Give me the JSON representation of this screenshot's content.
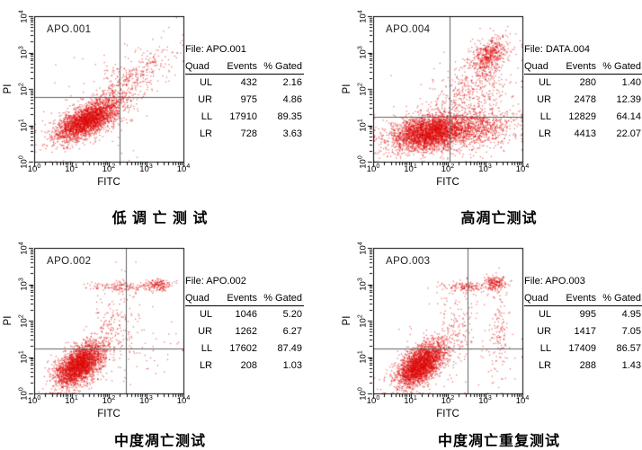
{
  "colors": {
    "dot": "#dc0a0a",
    "axis": "#000000",
    "gate_line": "#606060",
    "text": "#000000",
    "background": "#ffffff"
  },
  "chart_data": [
    {
      "type": "scatter",
      "plot_label": "APO.001",
      "title": "低 调 亡 测 试",
      "file_label": "File: APO.001",
      "xlabel": "FITC",
      "ylabel": "PI",
      "x_scale": "log10",
      "y_scale": "log10",
      "xlim_exp": [
        0,
        4
      ],
      "ylim_exp": [
        0,
        4
      ],
      "x_ticks_exp": [
        0,
        1,
        2,
        3,
        4
      ],
      "y_ticks_exp": [
        0,
        1,
        2,
        3,
        4
      ],
      "quadrant_gate_log10": {
        "x": 2.29,
        "y": 1.78
      },
      "table": {
        "headers": [
          "Quad",
          "Events",
          "% Gated"
        ],
        "rows": [
          [
            "UL",
            "432",
            "2.16"
          ],
          [
            "UR",
            "975",
            "4.86"
          ],
          [
            "LL",
            "17910",
            "89.35"
          ],
          [
            "LR",
            "728",
            "3.63"
          ]
        ]
      },
      "seed": 11,
      "clusters": [
        {
          "n": 2800,
          "cx": 1.4,
          "cy": 1.15,
          "sx": 0.42,
          "sy": 0.28,
          "rho": 0.65
        },
        {
          "n": 420,
          "cx": 2.55,
          "cy": 2.2,
          "sx": 0.55,
          "sy": 0.45,
          "rho": 0.7
        },
        {
          "n": 120,
          "cx": 1.9,
          "cy": 1.6,
          "sx": 0.9,
          "sy": 0.8,
          "rho": 0.4
        }
      ]
    },
    {
      "type": "scatter",
      "plot_label": "APO.004",
      "title": "高凋亡测试",
      "file_label": "File: DATA.004",
      "xlabel": "FITC",
      "ylabel": "PI",
      "x_scale": "log10",
      "y_scale": "log10",
      "xlim_exp": [
        0,
        4
      ],
      "ylim_exp": [
        0,
        4
      ],
      "x_ticks_exp": [
        0,
        1,
        2,
        3,
        4
      ],
      "y_ticks_exp": [
        0,
        1,
        2,
        3,
        4
      ],
      "quadrant_gate_log10": {
        "x": 2.05,
        "y": 1.23
      },
      "table": {
        "headers": [
          "Quad",
          "Events",
          "% Gated"
        ],
        "rows": [
          [
            "UL",
            "280",
            "1.40"
          ],
          [
            "UR",
            "2478",
            "12.39"
          ],
          [
            "LL",
            "12829",
            "64.14"
          ],
          [
            "LR",
            "4413",
            "22.07"
          ]
        ]
      },
      "seed": 22,
      "clusters": [
        {
          "n": 3000,
          "cx": 1.45,
          "cy": 0.8,
          "sx": 0.5,
          "sy": 0.24,
          "rho": 0.3
        },
        {
          "n": 900,
          "cx": 2.7,
          "cy": 0.9,
          "sx": 0.55,
          "sy": 0.28,
          "rho": 0.2
        },
        {
          "n": 550,
          "cx": 3.1,
          "cy": 2.9,
          "sx": 0.25,
          "sy": 0.28,
          "rho": 0.4
        },
        {
          "n": 500,
          "cx": 2.55,
          "cy": 1.9,
          "sx": 0.55,
          "sy": 0.6,
          "rho": 0.5
        },
        {
          "n": 120,
          "cx": 2.0,
          "cy": 1.2,
          "sx": 1.0,
          "sy": 0.7,
          "rho": 0.3
        }
      ]
    },
    {
      "type": "scatter",
      "plot_label": "APO.002",
      "title": "中度凋亡测试",
      "file_label": "File: APO.002",
      "xlabel": "FITC",
      "ylabel": "PI",
      "x_scale": "log10",
      "y_scale": "log10",
      "xlim_exp": [
        0,
        4
      ],
      "ylim_exp": [
        0,
        4
      ],
      "x_ticks_exp": [
        0,
        1,
        2,
        3,
        4
      ],
      "y_ticks_exp": [
        0,
        1,
        2,
        3,
        4
      ],
      "quadrant_gate_log10": {
        "x": 2.46,
        "y": 1.23
      },
      "table": {
        "headers": [
          "Quad",
          "Events",
          "% Gated"
        ],
        "rows": [
          [
            "UL",
            "1046",
            "5.20"
          ],
          [
            "UR",
            "1262",
            "6.27"
          ],
          [
            "LL",
            "17602",
            "87.49"
          ],
          [
            "LR",
            "208",
            "1.03"
          ]
        ]
      },
      "seed": 33,
      "clusters": [
        {
          "n": 2800,
          "cx": 1.2,
          "cy": 0.8,
          "sx": 0.32,
          "sy": 0.3,
          "rho": 0.55
        },
        {
          "n": 140,
          "cx": 2.35,
          "cy": 2.95,
          "sx": 0.4,
          "sy": 0.06,
          "rho": 0
        },
        {
          "n": 170,
          "cx": 3.3,
          "cy": 3.0,
          "sx": 0.2,
          "sy": 0.08,
          "rho": 0
        },
        {
          "n": 170,
          "cx": 2.1,
          "cy": 1.9,
          "sx": 0.3,
          "sy": 0.55,
          "rho": 0.3
        },
        {
          "n": 90,
          "cx": 2.5,
          "cy": 1.2,
          "sx": 0.8,
          "sy": 0.6,
          "rho": 0.2
        }
      ]
    },
    {
      "type": "scatter",
      "plot_label": "APO.003",
      "title": "中度凋亡重复测试",
      "file_label": "File: APO.003",
      "xlabel": "FITC",
      "ylabel": "PI",
      "x_scale": "log10",
      "y_scale": "log10",
      "xlim_exp": [
        0,
        4
      ],
      "ylim_exp": [
        0,
        4
      ],
      "x_ticks_exp": [
        0,
        1,
        2,
        3,
        4
      ],
      "y_ticks_exp": [
        0,
        1,
        2,
        3,
        4
      ],
      "quadrant_gate_log10": {
        "x": 2.53,
        "y": 1.23
      },
      "table": {
        "headers": [
          "Quad",
          "Events",
          "% Gated"
        ],
        "rows": [
          [
            "UL",
            "995",
            "4.95"
          ],
          [
            "UR",
            "1417",
            "7.05"
          ],
          [
            "LL",
            "17409",
            "86.57"
          ],
          [
            "LR",
            "288",
            "1.43"
          ]
        ]
      },
      "seed": 44,
      "clusters": [
        {
          "n": 2800,
          "cx": 1.25,
          "cy": 0.8,
          "sx": 0.32,
          "sy": 0.3,
          "rho": 0.55
        },
        {
          "n": 150,
          "cx": 2.5,
          "cy": 2.95,
          "sx": 0.35,
          "sy": 0.07,
          "rho": 0
        },
        {
          "n": 200,
          "cx": 3.25,
          "cy": 3.05,
          "sx": 0.16,
          "sy": 0.1,
          "rho": 0
        },
        {
          "n": 160,
          "cx": 2.2,
          "cy": 1.9,
          "sx": 0.3,
          "sy": 0.55,
          "rho": 0.3
        },
        {
          "n": 130,
          "cx": 3.35,
          "cy": 1.6,
          "sx": 0.12,
          "sy": 0.8,
          "rho": 0
        },
        {
          "n": 80,
          "cx": 2.3,
          "cy": 1.1,
          "sx": 0.8,
          "sy": 0.5,
          "rho": 0.2
        }
      ]
    }
  ]
}
